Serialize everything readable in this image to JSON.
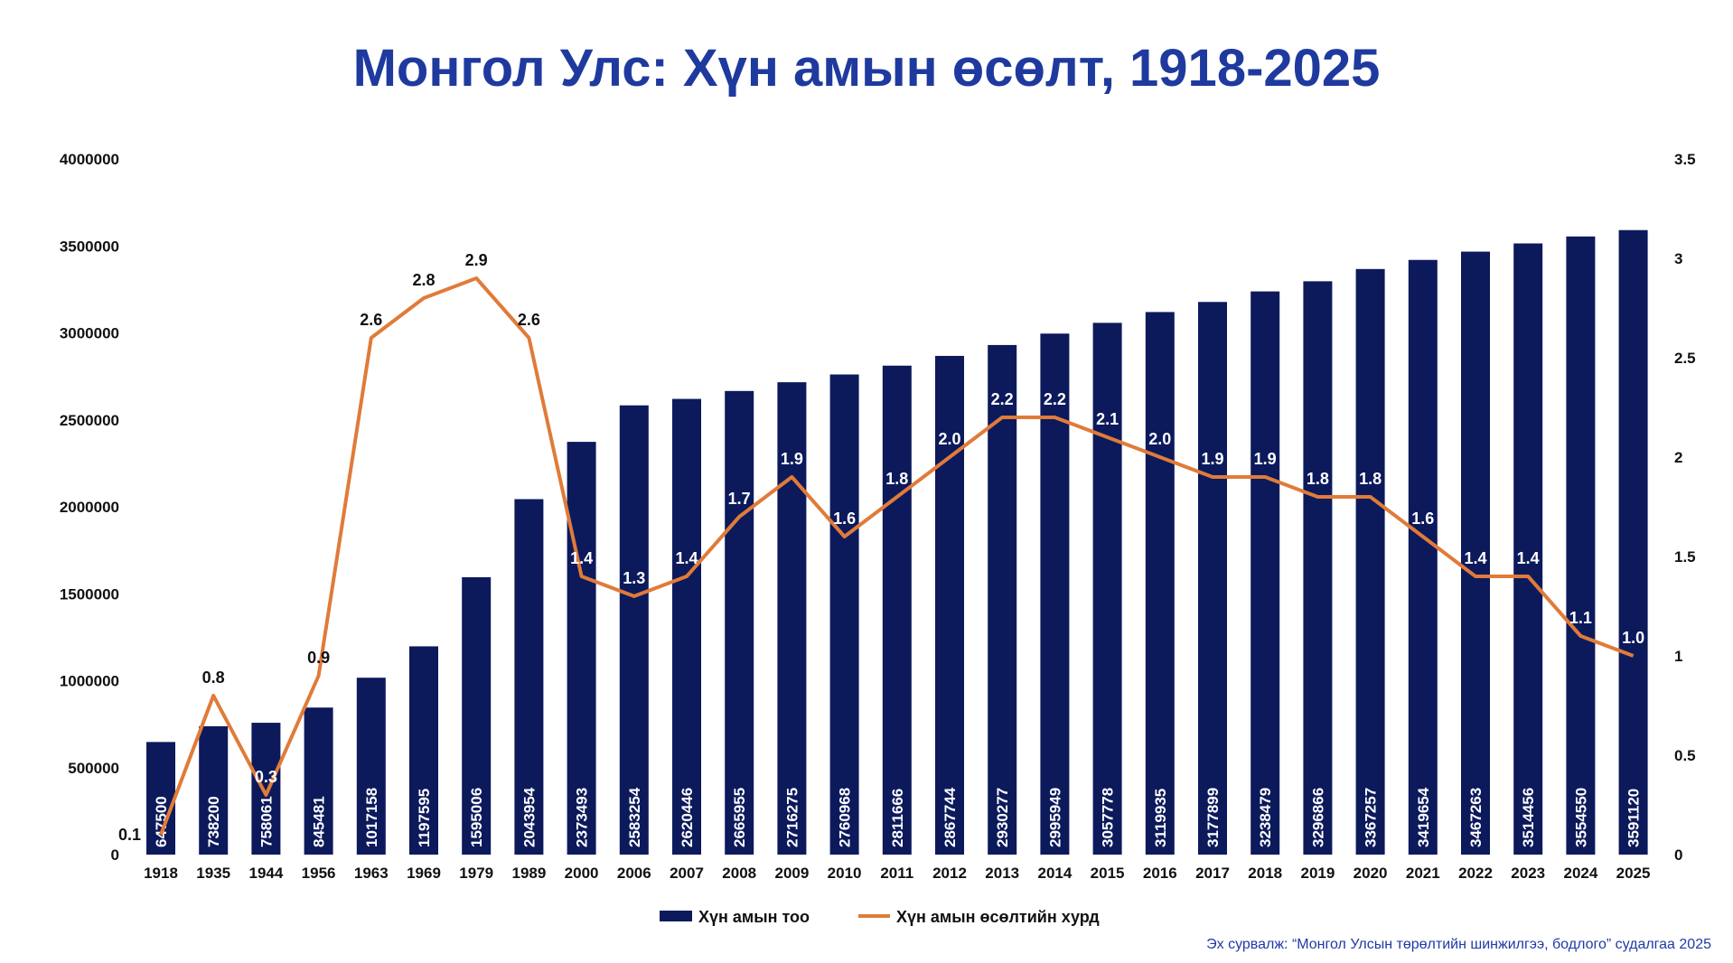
{
  "title": "Монгол Улс: Хүн амын өсөлт, 1918-2025",
  "source": "Эх сурвалж: “Монгол Улсын төрөлтийн шинжилгээ, бодлого” судалгаа 2025",
  "colors": {
    "bar": "#0c1a5c",
    "line": "#e07b39",
    "title": "#1f3a9e"
  },
  "chart_data": {
    "type": "bar+line",
    "categories": [
      "1918",
      "1935",
      "1944",
      "1956",
      "1963",
      "1969",
      "1979",
      "1989",
      "2000",
      "2006",
      "2007",
      "2008",
      "2009",
      "2010",
      "2011",
      "2012",
      "2013",
      "2014",
      "2015",
      "2016",
      "2017",
      "2018",
      "2019",
      "2020",
      "2021",
      "2022",
      "2023",
      "2024",
      "2025"
    ],
    "series": [
      {
        "name": "Хүн амын тоо",
        "type": "bar",
        "axis": "left",
        "values": [
          647500,
          738200,
          758061,
          845481,
          1017158,
          1197595,
          1595006,
          2043954,
          2373493,
          2583254,
          2620446,
          2665955,
          2716275,
          2760968,
          2811666,
          2867744,
          2930277,
          2995949,
          3057778,
          3119935,
          3177899,
          3238479,
          3296866,
          3367257,
          3419654,
          3467263,
          3514456,
          3554550,
          3591120
        ]
      },
      {
        "name": "Хүн амын өсөлтийн хурд",
        "type": "line",
        "axis": "right",
        "values": [
          0.1,
          0.8,
          0.3,
          0.9,
          2.6,
          2.8,
          2.9,
          2.6,
          1.4,
          1.3,
          1.4,
          1.7,
          1.9,
          1.6,
          1.8,
          2.0,
          2.2,
          2.2,
          2.1,
          2.0,
          1.9,
          1.9,
          1.8,
          1.8,
          1.6,
          1.4,
          1.4,
          1.1,
          1.0
        ],
        "labels": [
          "0.1",
          "0.8",
          "0.3",
          "0.9",
          "2.6",
          "2.8",
          "2.9",
          "2.6",
          "1.4",
          "1.3",
          "1.4",
          "1.7",
          "1.9",
          "1.6",
          "1.8",
          "2.0",
          "2.2",
          "2.2",
          "2.1",
          "2.0",
          "1.9",
          "1.9",
          "1.8",
          "1.8",
          "1.6",
          "1.4",
          "1.4",
          "1.1",
          "1.0"
        ]
      }
    ],
    "y_left": {
      "min": 0,
      "max": 4000000,
      "ticks": [
        "0",
        "500000",
        "1000000",
        "1500000",
        "2000000",
        "2500000",
        "3000000",
        "3500000",
        "4000000"
      ]
    },
    "y_right": {
      "min": 0,
      "max": 3.5,
      "ticks": [
        "0",
        "0.5",
        "1",
        "1.5",
        "2",
        "2.5",
        "3",
        "3.5"
      ]
    },
    "legend_position": "bottom",
    "grid": false
  }
}
